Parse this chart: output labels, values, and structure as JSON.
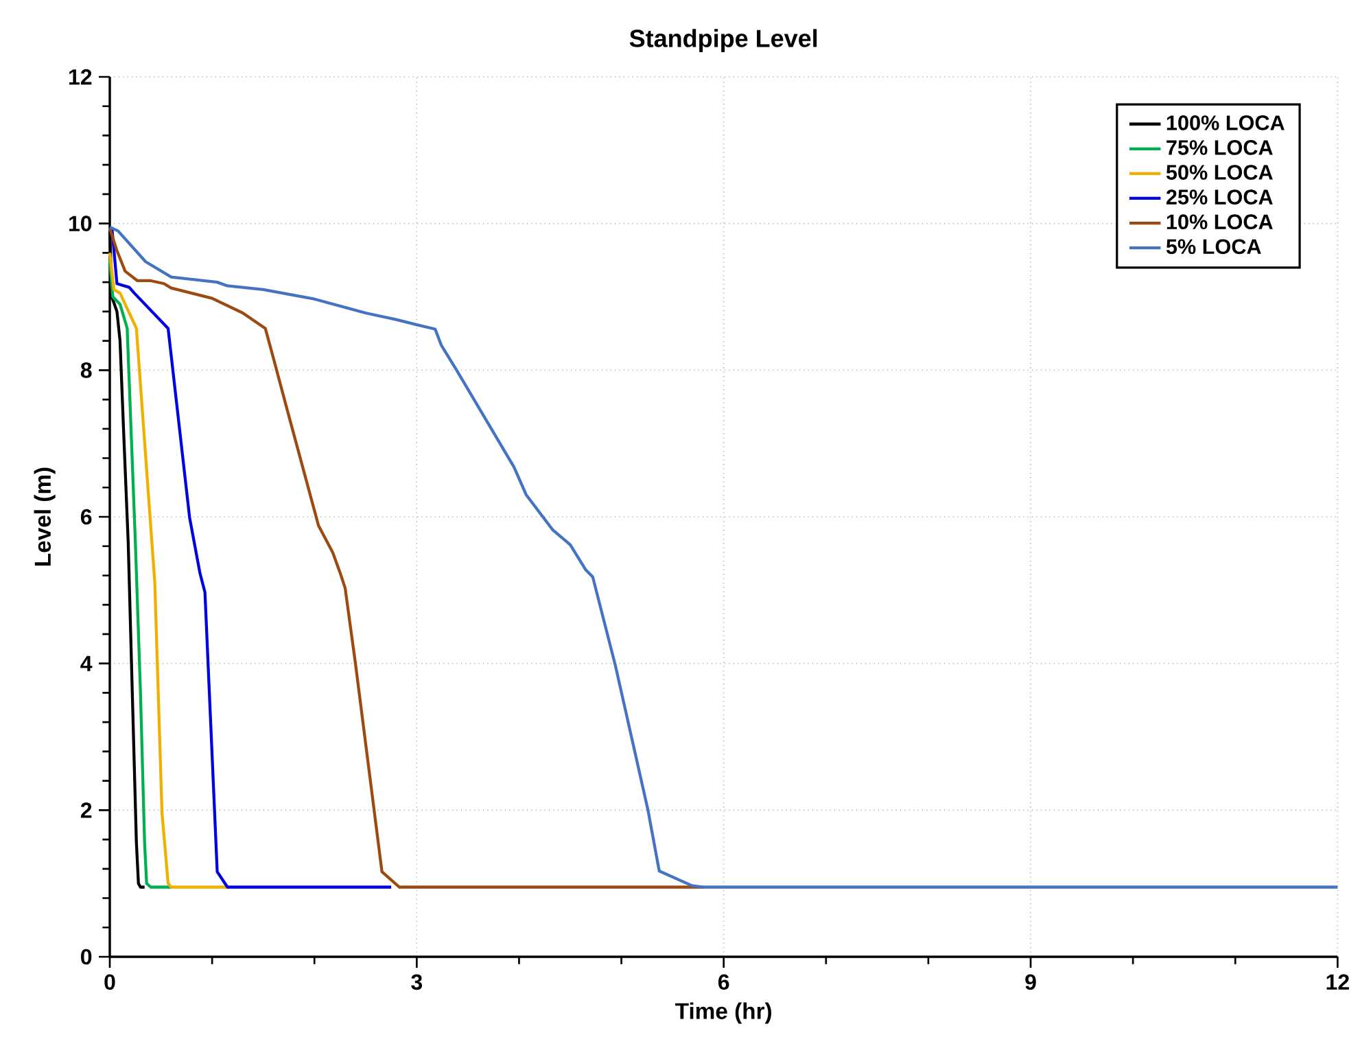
{
  "chart_data": {
    "type": "line",
    "title": "Standpipe Level",
    "xlabel": "Time (hr)",
    "ylabel": "Level (m)",
    "xlim": [
      0,
      12
    ],
    "ylim": [
      0,
      12
    ],
    "xticks": [
      0,
      3,
      6,
      9,
      12
    ],
    "yticks": [
      0,
      2,
      4,
      6,
      8,
      10,
      12
    ],
    "grid": true,
    "legend": "top right",
    "marker": "none",
    "line_style": "solid",
    "series": [
      {
        "name": "100% LOCA",
        "color": "#000000",
        "x": [
          0,
          0.02,
          0.07,
          0.1,
          0.14,
          0.18,
          0.22,
          0.26,
          0.28,
          0.3,
          0.34
        ],
        "values": [
          9.9,
          9.0,
          8.8,
          8.4,
          7.0,
          5.65,
          3.6,
          1.56,
          1.0,
          0.95,
          0.95
        ]
      },
      {
        "name": "75% LOCA",
        "color": "#00b050",
        "x": [
          0,
          0.03,
          0.1,
          0.17,
          0.25,
          0.3,
          0.34,
          0.36,
          0.4,
          0.6
        ],
        "values": [
          9.5,
          9.0,
          8.9,
          8.57,
          5.65,
          3.6,
          1.56,
          1.0,
          0.95,
          0.95
        ]
      },
      {
        "name": "50% LOCA",
        "color": "#f0b000",
        "x": [
          0,
          0.04,
          0.1,
          0.15,
          0.26,
          0.44,
          0.51,
          0.57,
          0.6,
          1.15
        ],
        "values": [
          9.6,
          9.1,
          9.05,
          8.9,
          8.57,
          5.1,
          1.97,
          1.0,
          0.95,
          0.95
        ]
      },
      {
        "name": "25% LOCA",
        "color": "#0000e0",
        "x": [
          0.02,
          0.07,
          0.19,
          0.24,
          0.57,
          0.78,
          0.88,
          0.93,
          1.05,
          1.15,
          2.75
        ],
        "values": [
          9.95,
          9.18,
          9.13,
          9.05,
          8.57,
          5.99,
          5.24,
          4.97,
          1.16,
          0.95,
          0.95
        ]
      },
      {
        "name": "10% LOCA",
        "color": "#9c4a10",
        "x": [
          0,
          0.07,
          0.15,
          0.27,
          0.4,
          0.53,
          0.6,
          1.0,
          1.3,
          1.52,
          1.6,
          1.73,
          2.04,
          2.18,
          2.25,
          2.3,
          2.4,
          2.66,
          2.83,
          5.8
        ],
        "values": [
          9.93,
          9.63,
          9.35,
          9.22,
          9.22,
          9.18,
          9.12,
          8.98,
          8.78,
          8.57,
          8.16,
          7.48,
          5.88,
          5.51,
          5.24,
          5.03,
          4.01,
          1.16,
          0.95,
          0.95
        ]
      },
      {
        "name": "5% LOCA",
        "color": "#4472c4",
        "x": [
          0,
          0.08,
          0.35,
          0.6,
          1.05,
          1.15,
          1.5,
          2.0,
          2.5,
          2.8,
          3.0,
          3.18,
          3.24,
          3.39,
          3.95,
          4.07,
          4.33,
          4.5,
          4.65,
          4.72,
          4.94,
          5.26,
          5.37,
          5.69,
          5.8,
          12
        ],
        "values": [
          9.95,
          9.9,
          9.48,
          9.27,
          9.2,
          9.15,
          9.1,
          8.97,
          8.78,
          8.69,
          8.62,
          8.56,
          8.34,
          8.0,
          6.68,
          6.3,
          5.82,
          5.62,
          5.28,
          5.18,
          3.98,
          2.0,
          1.17,
          0.97,
          0.95,
          0.95
        ]
      }
    ]
  }
}
